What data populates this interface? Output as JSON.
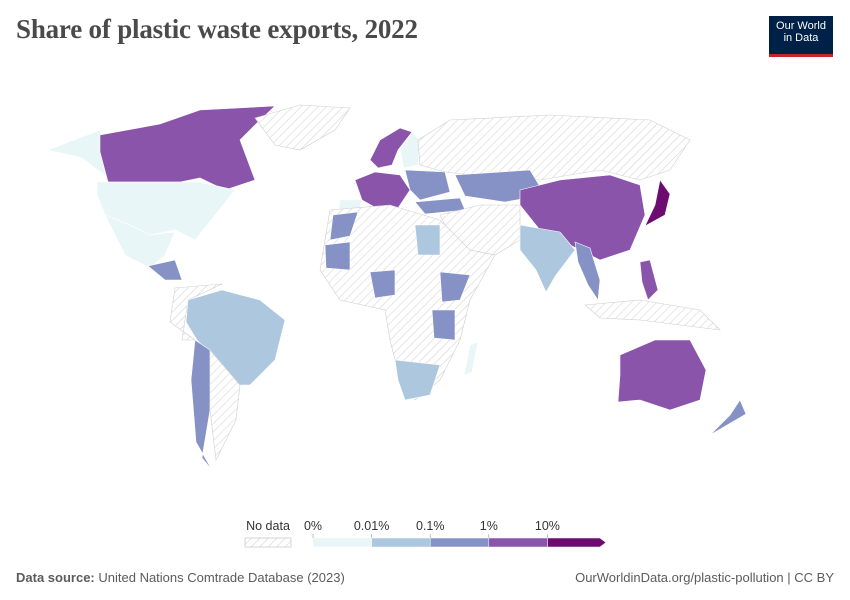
{
  "header": {
    "title": "Share of plastic waste exports, 2022",
    "logo": [
      "Our World",
      "in Data"
    ]
  },
  "legend": {
    "no_data": "No data",
    "labels": [
      "0%",
      "0.01%",
      "0.1%",
      "1%",
      "10%"
    ],
    "colors": [
      "#e9f6f8",
      "#adc7de",
      "#8692c6",
      "#8a54aa",
      "#6c0c71"
    ],
    "no_data_color": "#cfcfcf"
  },
  "footer": {
    "source_label": "Data source:",
    "source": "United Nations Comtrade Database (2023)",
    "url": "OurWorldinData.org/plastic-pollution | CC BY"
  }
}
